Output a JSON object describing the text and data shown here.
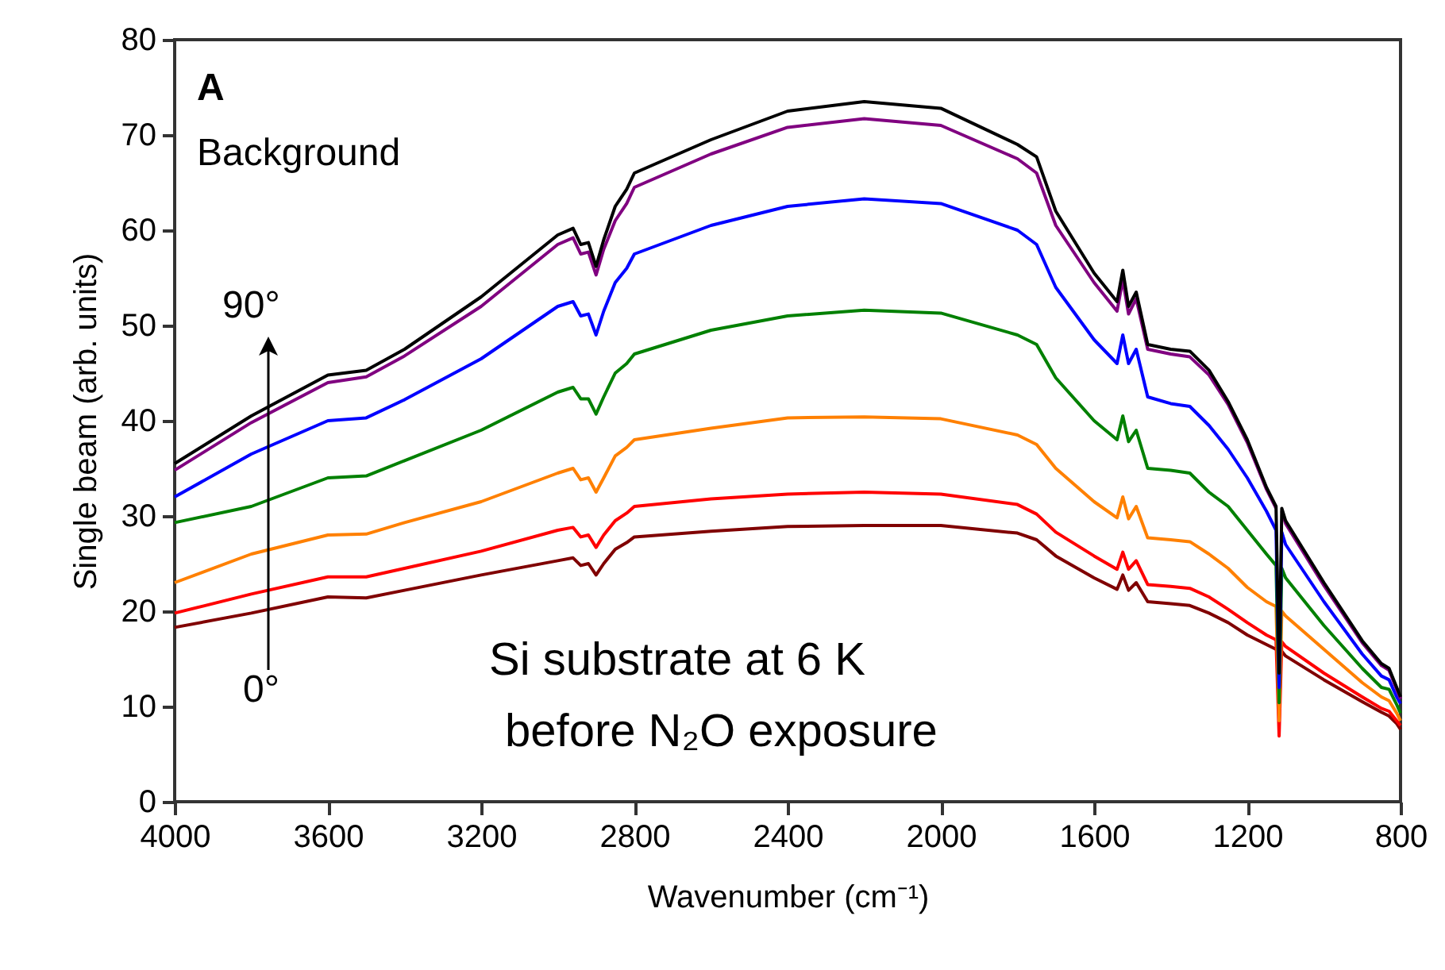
{
  "chart_data": {
    "type": "line",
    "xlabel": "Wavenumber (cm⁻¹)",
    "ylabel": "Single beam (arb. units)",
    "annotations": [
      "A",
      "Background",
      "90°",
      "0°",
      "Si substrate at 6 K",
      "before N₂O exposure"
    ],
    "x": [
      4000,
      3800,
      3600,
      3500,
      3400,
      3200,
      3000,
      2960,
      2940,
      2920,
      2900,
      2880,
      2850,
      2820,
      2800,
      2600,
      2400,
      2200,
      2000,
      1800,
      1750,
      1700,
      1600,
      1540,
      1525,
      1510,
      1490,
      1460,
      1400,
      1350,
      1300,
      1250,
      1200,
      1150,
      1125,
      1117,
      1110,
      1100,
      1000,
      900,
      850,
      830,
      810,
      800
    ],
    "xlim": [
      4000,
      800
    ],
    "xticks": [
      4000,
      3600,
      3200,
      2800,
      2400,
      2000,
      1600,
      1200,
      800
    ],
    "ylim": [
      0,
      80
    ],
    "yticks": [
      0,
      10,
      20,
      30,
      40,
      50,
      60,
      70,
      80
    ],
    "grid": false,
    "legend": false,
    "line_style": "solid",
    "marker": "none",
    "series": [
      {
        "color": "#000000",
        "values": [
          35.5,
          40.5,
          44.8,
          45.3,
          47.5,
          53,
          59.5,
          60.2,
          58.5,
          58.7,
          56.2,
          59,
          62.5,
          64.3,
          66,
          69.5,
          72.5,
          73.5,
          72.8,
          69,
          67.7,
          62,
          55.5,
          52.5,
          55.8,
          52,
          53.5,
          48,
          47.5,
          47.3,
          45.3,
          42,
          38,
          33,
          31,
          13.5,
          30.8,
          29.5,
          23,
          16.9,
          14.5,
          14,
          12,
          11
        ]
      },
      {
        "color": "#800080",
        "values": [
          34.8,
          39.8,
          44,
          44.6,
          46.8,
          52,
          58.5,
          59.2,
          57.5,
          57.7,
          55.3,
          58,
          61,
          62.8,
          64.5,
          68,
          70.8,
          71.7,
          71,
          67.5,
          66,
          60.5,
          54.5,
          51.5,
          54.8,
          51.2,
          52.8,
          47.5,
          47,
          46.7,
          44.8,
          41.7,
          37.7,
          32.8,
          30.8,
          null,
          30.5,
          29.2,
          22.7,
          16.7,
          14.3,
          13.8,
          11.8,
          10.8
        ]
      },
      {
        "color": "#0000ff",
        "values": [
          32,
          36.5,
          40,
          40.3,
          42.2,
          46.5,
          52,
          52.5,
          51,
          51.2,
          49,
          51.5,
          54.5,
          56,
          57.5,
          60.5,
          62.5,
          63.3,
          62.8,
          60,
          58.5,
          54,
          48.5,
          46,
          49,
          46,
          47.5,
          42.5,
          41.8,
          41.5,
          39.5,
          37,
          34,
          30.5,
          28.5,
          12,
          28.3,
          27,
          21,
          15.5,
          13.2,
          12.8,
          11,
          10.3
        ]
      },
      {
        "color": "#008000",
        "values": [
          29.3,
          31,
          34,
          34.2,
          35.8,
          39,
          43,
          43.5,
          42.3,
          42.3,
          40.7,
          42.5,
          45,
          46,
          47,
          49.5,
          51,
          51.6,
          51.3,
          49,
          48,
          44.5,
          40,
          38,
          40.5,
          37.8,
          39,
          35,
          34.8,
          34.5,
          32.5,
          31,
          28.5,
          26,
          24.8,
          10.4,
          24.5,
          23.5,
          18.5,
          14,
          12,
          11.8,
          10.2,
          9.3
        ]
      },
      {
        "color": "#ff8000",
        "values": [
          23,
          26,
          28,
          28.1,
          29.3,
          31.5,
          34.5,
          35,
          33.8,
          34,
          32.5,
          34,
          36.3,
          37.2,
          38,
          39.2,
          40.3,
          40.4,
          40.2,
          38.5,
          37.5,
          35,
          31.5,
          29.8,
          32,
          29.7,
          31,
          27.7,
          27.5,
          27.3,
          26,
          24.5,
          22.5,
          21,
          20.5,
          8.5,
          20,
          19.5,
          16,
          12.5,
          11,
          10.6,
          9.3,
          8.5
        ]
      },
      {
        "color": "#ff0000",
        "values": [
          19.8,
          21.8,
          23.6,
          23.6,
          24.5,
          26.3,
          28.5,
          28.8,
          27.8,
          28,
          26.7,
          28,
          29.5,
          30.3,
          31,
          31.8,
          32.3,
          32.5,
          32.3,
          31.2,
          30.2,
          28.3,
          25.8,
          24.4,
          26.2,
          24.4,
          25.3,
          22.8,
          22.6,
          22.4,
          21.5,
          20.2,
          18.8,
          17.5,
          17,
          6.9,
          16.8,
          16.3,
          13.5,
          11,
          9.8,
          9.5,
          8.5,
          8
        ]
      },
      {
        "color": "#800000",
        "values": [
          18.3,
          19.8,
          21.5,
          21.4,
          22.2,
          23.8,
          25.3,
          25.6,
          24.8,
          25,
          23.8,
          25,
          26.5,
          27.2,
          27.8,
          28.4,
          28.9,
          29,
          29,
          28.2,
          27.5,
          25.8,
          23.5,
          22.3,
          23.8,
          22.2,
          23,
          21,
          20.8,
          20.6,
          19.8,
          18.8,
          17.5,
          16.5,
          16,
          null,
          15.8,
          15.3,
          12.8,
          10.5,
          9.4,
          9,
          8.2,
          7.6
        ]
      }
    ]
  }
}
